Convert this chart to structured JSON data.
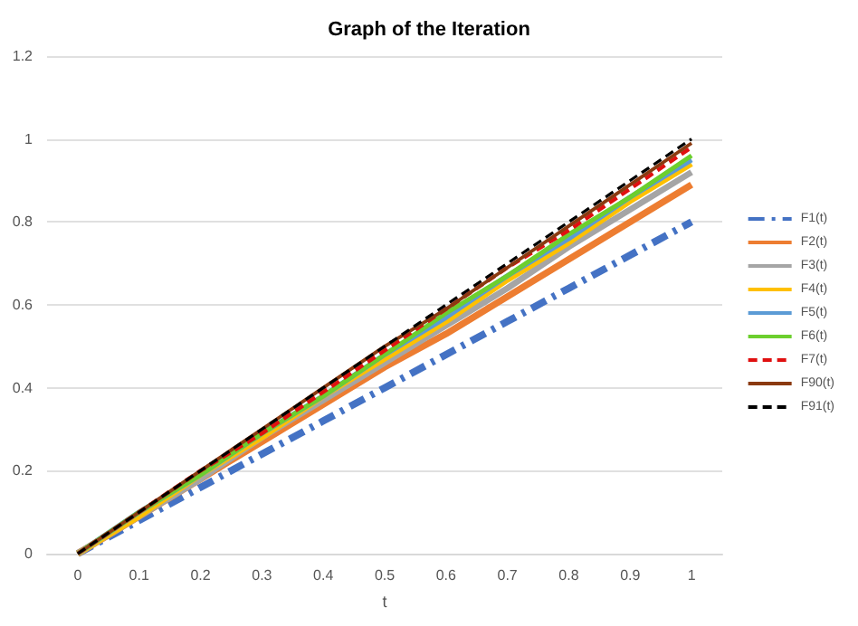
{
  "chart_data": {
    "type": "line",
    "title": "Graph of the Iteration",
    "xlabel": "t",
    "categories": [
      "0",
      "0.1",
      "0.2",
      "0.3",
      "0.4",
      "0.5",
      "0.6",
      "0.7",
      "0.8",
      "0.9",
      "1"
    ],
    "ylim": [
      0,
      1.2
    ],
    "yticks": [
      0,
      0.2,
      0.4,
      0.6,
      0.8,
      1,
      1.2
    ],
    "grid": "y",
    "legend": "right",
    "marker": "none",
    "series": [
      {
        "name": "F1(t)",
        "color": "#4472c4",
        "line_style": "dashdot",
        "values": [
          0,
          0.08,
          0.16,
          0.24,
          0.32,
          0.4,
          0.48,
          0.56,
          0.64,
          0.72,
          0.8
        ]
      },
      {
        "name": "F2(t)",
        "color": "#ed7d31",
        "values": [
          0,
          0.09,
          0.18,
          0.27,
          0.36,
          0.45,
          0.53,
          0.62,
          0.71,
          0.8,
          0.89
        ]
      },
      {
        "name": "F3(t)",
        "color": "#a5a5a5",
        "values": [
          0,
          0.09,
          0.18,
          0.28,
          0.37,
          0.46,
          0.55,
          0.64,
          0.74,
          0.83,
          0.92
        ]
      },
      {
        "name": "F4(t)",
        "color": "#ffc000",
        "values": [
          0,
          0.09,
          0.19,
          0.28,
          0.38,
          0.47,
          0.56,
          0.66,
          0.75,
          0.85,
          0.94
        ]
      },
      {
        "name": "F5(t)",
        "color": "#5b9bd5",
        "values": [
          0,
          0.1,
          0.19,
          0.29,
          0.38,
          0.48,
          0.57,
          0.67,
          0.76,
          0.86,
          0.95
        ]
      },
      {
        "name": "F6(t)",
        "color": "#6ccf2e",
        "values": [
          0,
          0.1,
          0.19,
          0.29,
          0.38,
          0.48,
          0.58,
          0.67,
          0.77,
          0.86,
          0.96
        ]
      },
      {
        "name": "F7(t)",
        "color": "#e01010",
        "line_style": "dashed",
        "values": [
          0,
          0.1,
          0.2,
          0.29,
          0.39,
          0.49,
          0.59,
          0.69,
          0.78,
          0.88,
          0.98
        ]
      },
      {
        "name": "F90(t)",
        "color": "#8b3a10",
        "values": [
          0,
          0.1,
          0.2,
          0.3,
          0.4,
          0.5,
          0.59,
          0.69,
          0.79,
          0.89,
          0.99
        ]
      },
      {
        "name": "F91(t)",
        "color": "#000000",
        "line_style": "dashed",
        "values": [
          0,
          0.1,
          0.2,
          0.3,
          0.4,
          0.5,
          0.6,
          0.7,
          0.8,
          0.9,
          1
        ]
      }
    ]
  }
}
